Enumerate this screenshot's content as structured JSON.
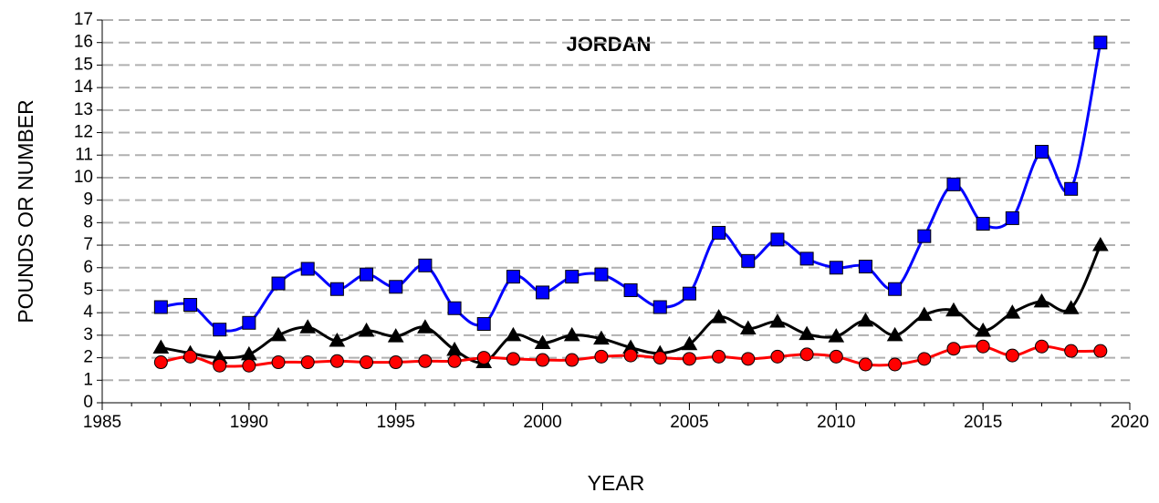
{
  "chart_data": {
    "type": "line",
    "title": "JORDAN",
    "x_label": "YEAR",
    "y_label": "POUNDS OR NUMBER",
    "x": [
      1987,
      1988,
      1989,
      1990,
      1991,
      1992,
      1993,
      1994,
      1995,
      1996,
      1997,
      1998,
      1999,
      2000,
      2001,
      2002,
      2003,
      2004,
      2005,
      2006,
      2007,
      2008,
      2009,
      2010,
      2011,
      2012,
      2013,
      2014,
      2015,
      2016,
      2017,
      2018,
      2019
    ],
    "series": [
      {
        "color": "#0000ff",
        "marker": "square",
        "values": [
          4.25,
          4.35,
          3.25,
          3.55,
          5.3,
          5.95,
          5.05,
          5.7,
          5.15,
          6.1,
          4.2,
          3.5,
          5.6,
          4.9,
          5.6,
          5.7,
          5.0,
          4.25,
          4.85,
          7.55,
          6.3,
          7.25,
          6.4,
          6.0,
          6.05,
          5.05,
          7.4,
          9.7,
          7.95,
          8.2,
          11.15,
          9.5,
          16.0
        ]
      },
      {
        "color": "#000000",
        "marker": "triangle",
        "values": [
          2.45,
          2.2,
          2.0,
          2.15,
          3.0,
          3.35,
          2.75,
          3.2,
          2.95,
          3.35,
          2.35,
          1.8,
          3.0,
          2.65,
          3.0,
          2.85,
          2.45,
          2.2,
          2.6,
          3.8,
          3.3,
          3.6,
          3.05,
          2.95,
          3.65,
          3.0,
          3.9,
          4.1,
          3.2,
          4.0,
          4.5,
          4.2,
          7.0
        ]
      },
      {
        "color": "#ff0000",
        "marker": "circle",
        "values": [
          1.8,
          2.05,
          1.65,
          1.65,
          1.8,
          1.8,
          1.85,
          1.8,
          1.8,
          1.85,
          1.85,
          2.0,
          1.95,
          1.9,
          1.9,
          2.05,
          2.1,
          2.0,
          1.95,
          2.05,
          1.95,
          2.05,
          2.15,
          2.05,
          1.7,
          1.7,
          1.95,
          2.4,
          2.5,
          2.1,
          2.5,
          2.3,
          2.3
        ]
      }
    ],
    "xlim": [
      1985,
      2020
    ],
    "xticks": [
      1985,
      1990,
      1995,
      2000,
      2005,
      2010,
      2015,
      2020
    ],
    "ylim": [
      0,
      17
    ],
    "yticks": [
      0,
      1,
      2,
      3,
      4,
      5,
      6,
      7,
      8,
      9,
      10,
      11,
      12,
      13,
      14,
      15,
      16,
      17
    ],
    "grid": true,
    "smooth": true
  }
}
